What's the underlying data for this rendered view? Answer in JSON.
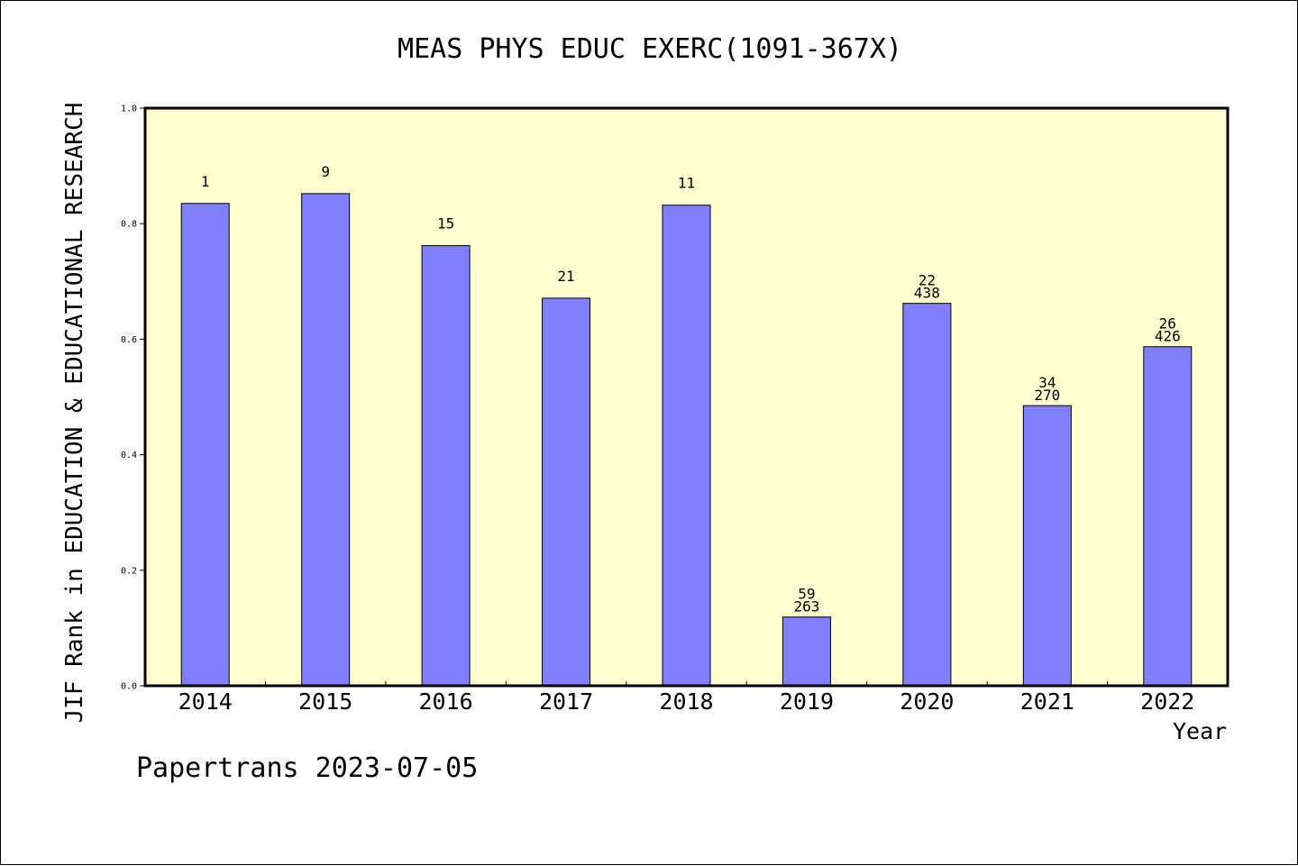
{
  "chart_data": {
    "type": "bar",
    "title": "MEAS PHYS EDUC EXERC(1091-367X)",
    "ylabel": "JIF Rank in EDUCATION & EDUCATIONAL RESEARCH",
    "xlabel": "Year",
    "categories": [
      "2014",
      "2015",
      "2016",
      "2017",
      "2018",
      "2019",
      "2020",
      "2021",
      "2022"
    ],
    "values": [
      0.835,
      0.852,
      0.762,
      0.671,
      0.832,
      0.119,
      0.662,
      0.485,
      0.587
    ],
    "bar_labels": [
      [
        "1"
      ],
      [
        "9"
      ],
      [
        "15"
      ],
      [
        "21"
      ],
      [
        "11"
      ],
      [
        "59",
        "263"
      ],
      [
        "22",
        "438"
      ],
      [
        "34",
        "270"
      ],
      [
        "26",
        "426"
      ]
    ],
    "ylim": [
      0,
      1.0
    ],
    "yticks": [
      "0.0",
      "0.2",
      "0.4",
      "0.6",
      "0.8",
      "1.0"
    ],
    "grid": false,
    "legend": "none",
    "colors": {
      "plot_bg": "#ffffd0",
      "bar_fill": "#8080ff",
      "bar_stroke": "#000000"
    }
  },
  "footer": "Papertrans 2023-07-05"
}
